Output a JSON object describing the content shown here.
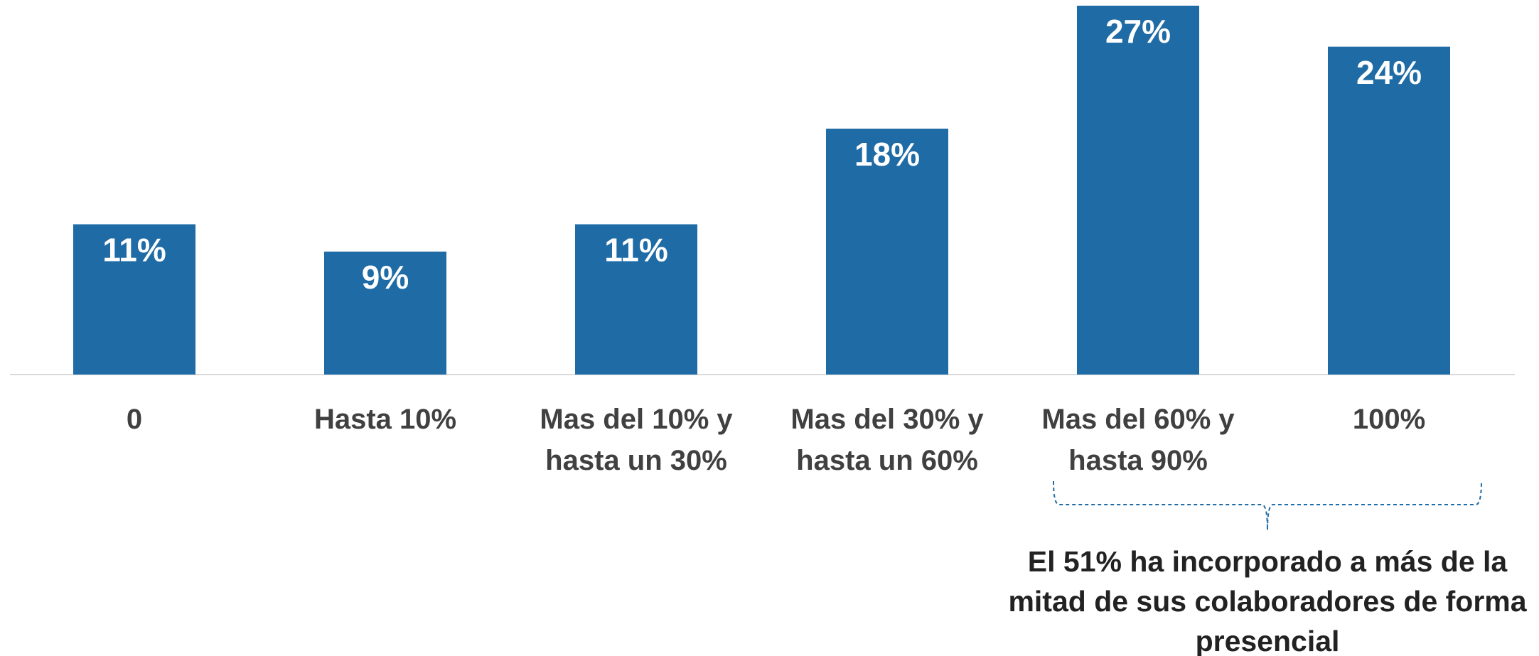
{
  "chart_data": {
    "type": "bar",
    "categories": [
      "0",
      "Hasta 10%",
      "Mas del 10% y\nhasta un 30%",
      "Mas del 30% y\nhasta un 60%",
      "Mas del 60% y\nhasta 90%",
      "100%"
    ],
    "values": [
      11,
      9,
      11,
      18,
      27,
      24
    ],
    "value_labels": [
      "11%",
      "9%",
      "11%",
      "18%",
      "27%",
      "24%"
    ],
    "color": "#1f6ba5",
    "annotation": "El 51% ha incorporado a más de la mitad de sus colaboradores de forma presencial"
  }
}
